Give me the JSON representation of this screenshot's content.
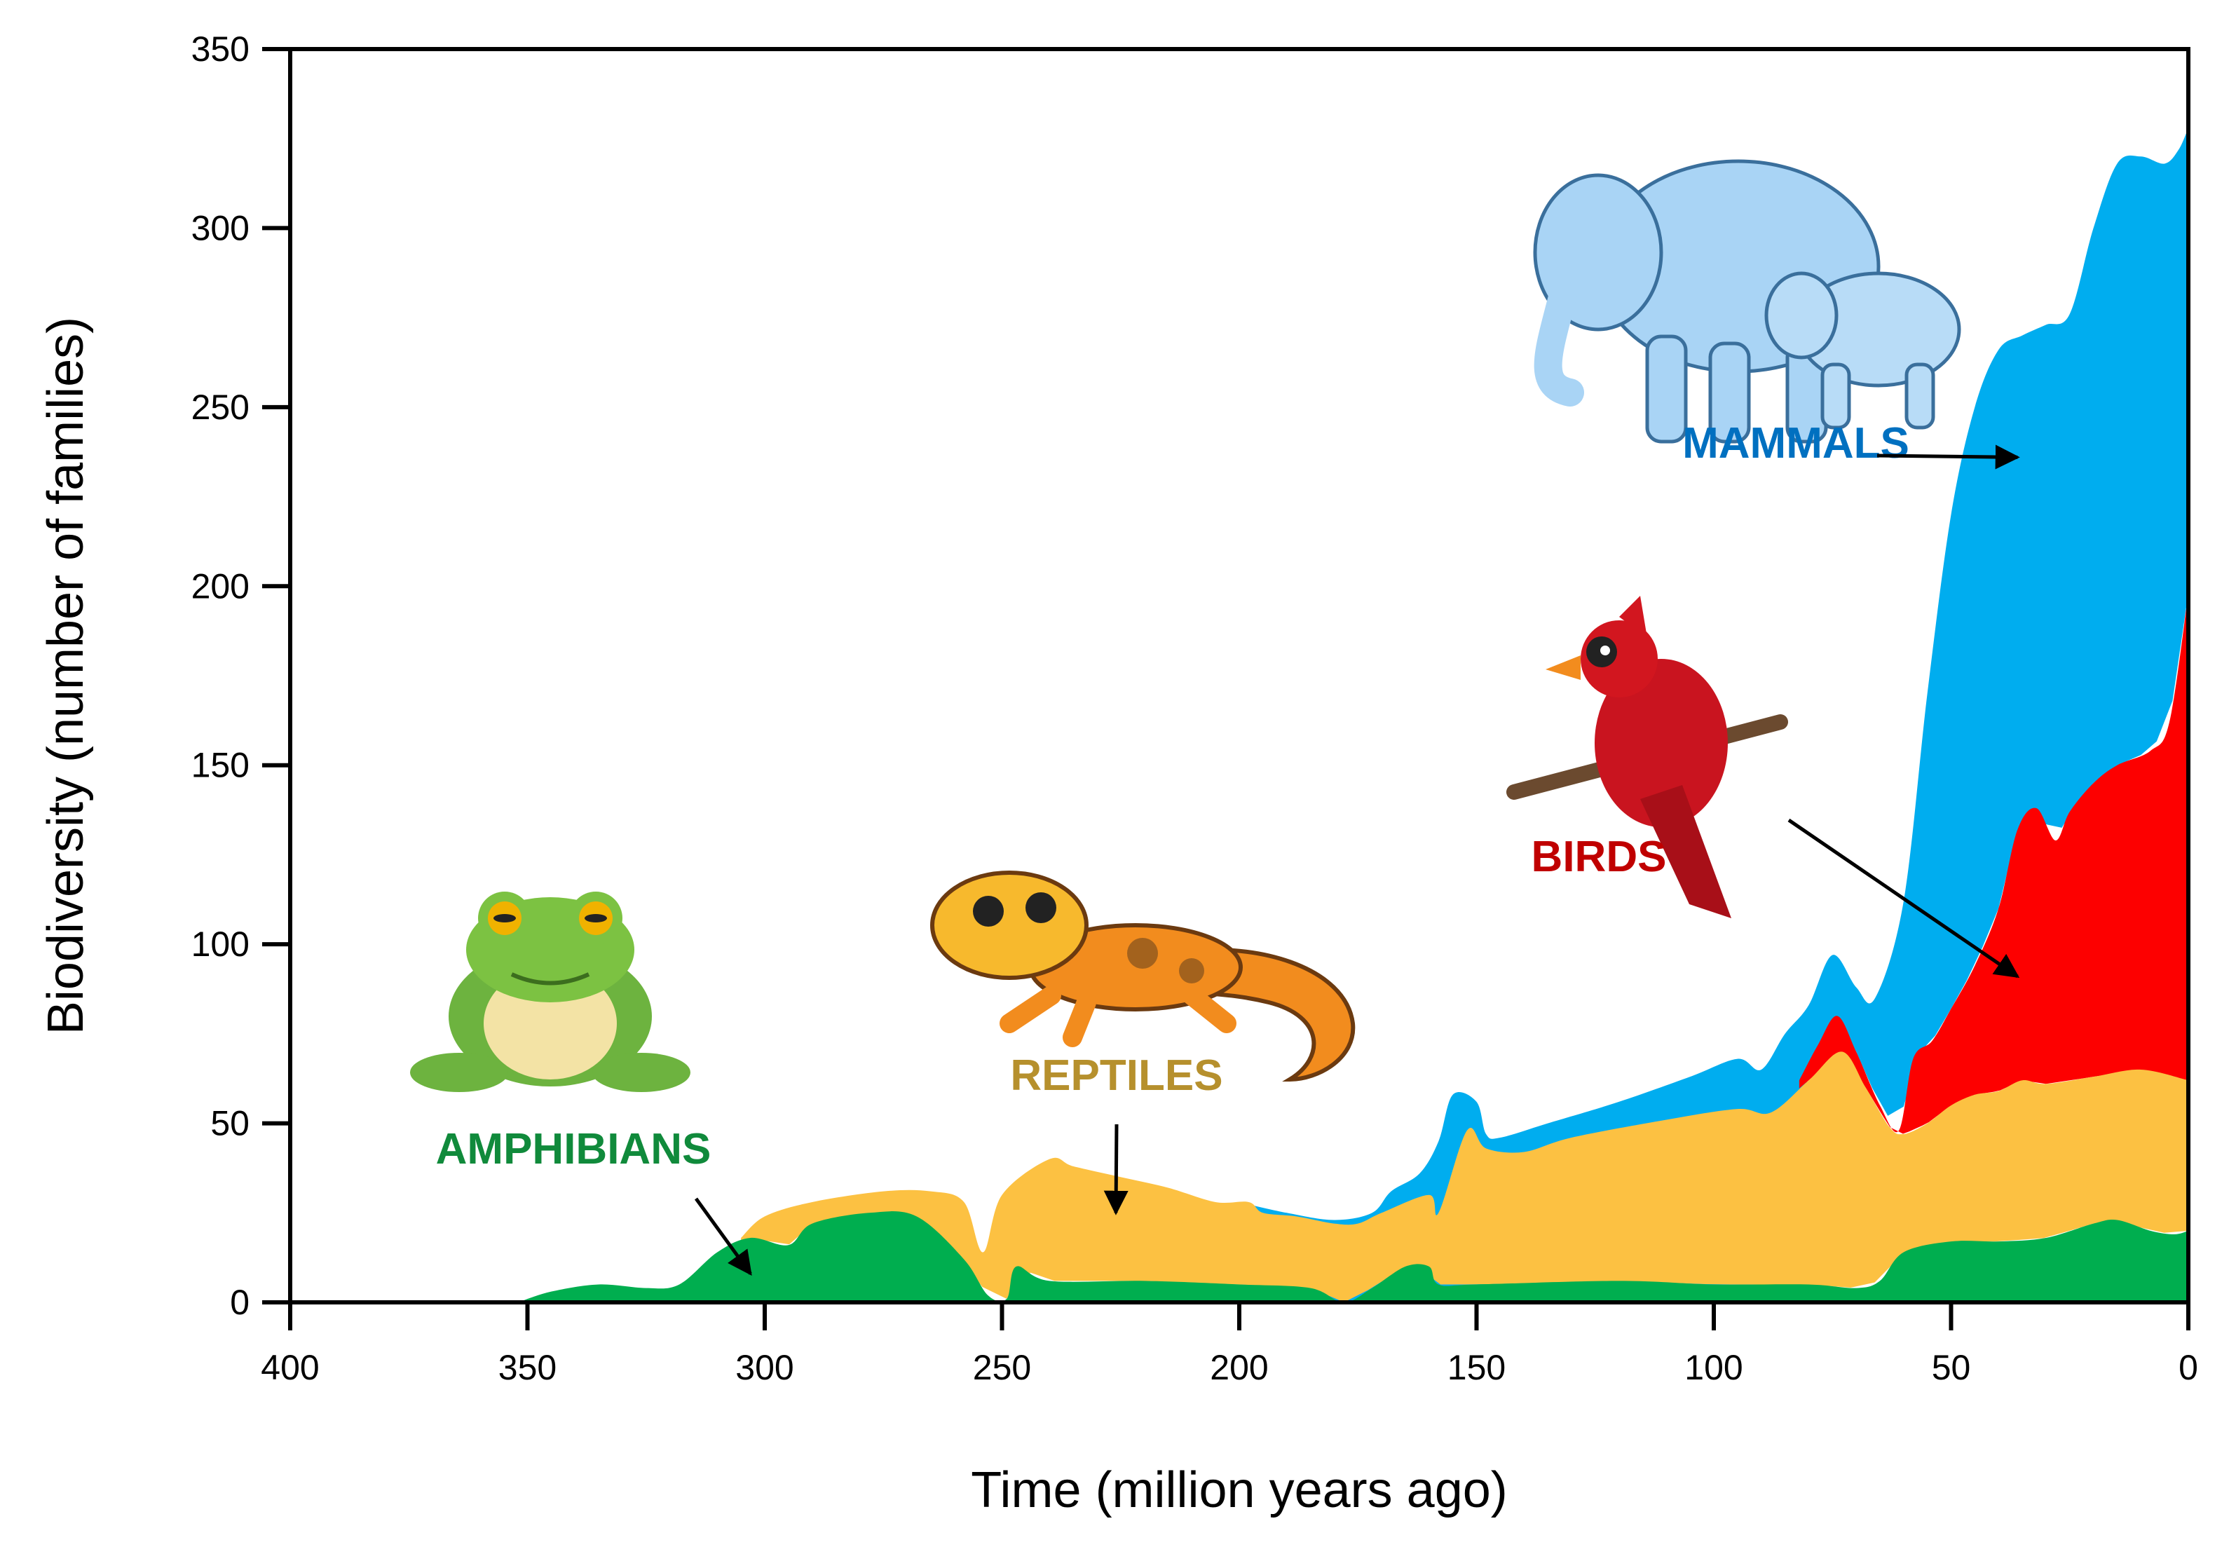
{
  "chart_data": {
    "type": "area",
    "stacked": true,
    "title": "",
    "xlabel": "Time (million years ago)",
    "ylabel": "Biodiversity (number of families)",
    "xlim": [
      400,
      0
    ],
    "ylim": [
      0,
      350
    ],
    "x_reversed": true,
    "grid": false,
    "legend": "none",
    "xticks": [
      "400",
      "350",
      "300",
      "250",
      "200",
      "150",
      "100",
      "50",
      "0"
    ],
    "yticks": [
      "0",
      "50",
      "100",
      "150",
      "200",
      "250",
      "300",
      "350"
    ],
    "series": [
      {
        "name": "AMPHIBIANS",
        "color": "#00ae4f",
        "icon": "frog-icon",
        "label_color": "#108a3b",
        "points": [
          [
            352,
            0
          ],
          [
            345,
            3
          ],
          [
            335,
            5
          ],
          [
            325,
            4
          ],
          [
            318,
            5
          ],
          [
            310,
            14
          ],
          [
            303,
            18
          ],
          [
            295,
            16
          ],
          [
            290,
            22
          ],
          [
            278,
            25
          ],
          [
            268,
            24
          ],
          [
            258,
            12
          ],
          [
            253,
            2
          ],
          [
            249,
            1
          ],
          [
            247,
            10
          ],
          [
            240,
            6
          ],
          [
            220,
            6
          ],
          [
            200,
            5
          ],
          [
            185,
            4
          ],
          [
            178,
            0
          ],
          [
            172,
            4
          ],
          [
            165,
            10
          ],
          [
            160,
            10
          ],
          [
            158,
            5
          ],
          [
            150,
            5
          ],
          [
            120,
            6
          ],
          [
            100,
            5
          ],
          [
            80,
            5
          ],
          [
            70,
            4
          ],
          [
            65,
            6
          ],
          [
            60,
            14
          ],
          [
            50,
            17
          ],
          [
            40,
            17
          ],
          [
            30,
            18
          ],
          [
            20,
            22
          ],
          [
            15,
            23
          ],
          [
            8,
            20
          ],
          [
            3,
            19
          ],
          [
            0,
            20
          ]
        ]
      },
      {
        "name": "REPTILES",
        "color": "#fcc142",
        "icon": "salamander-icon",
        "label_color": "#b6902d",
        "points": [
          [
            305,
            18
          ],
          [
            300,
            24
          ],
          [
            290,
            28
          ],
          [
            275,
            31
          ],
          [
            265,
            31
          ],
          [
            258,
            28
          ],
          [
            254,
            14
          ],
          [
            250,
            30
          ],
          [
            240,
            40
          ],
          [
            235,
            38
          ],
          [
            225,
            35
          ],
          [
            215,
            32
          ],
          [
            205,
            28
          ],
          [
            198,
            28
          ],
          [
            195,
            25
          ],
          [
            188,
            24
          ],
          [
            180,
            22
          ],
          [
            175,
            22
          ],
          [
            170,
            25
          ],
          [
            160,
            30
          ],
          [
            158,
            25
          ],
          [
            152,
            48
          ],
          [
            148,
            43
          ],
          [
            140,
            42
          ],
          [
            130,
            46
          ],
          [
            110,
            51
          ],
          [
            95,
            54
          ],
          [
            88,
            53
          ],
          [
            80,
            62
          ],
          [
            73,
            70
          ],
          [
            68,
            60
          ],
          [
            63,
            49
          ],
          [
            60,
            47
          ],
          [
            55,
            50
          ],
          [
            50,
            55
          ],
          [
            45,
            58
          ],
          [
            40,
            59
          ],
          [
            35,
            62
          ],
          [
            30,
            61
          ],
          [
            20,
            63
          ],
          [
            10,
            65
          ],
          [
            0,
            62
          ]
        ]
      },
      {
        "name": "BIRDS",
        "color": "#fd0000",
        "icon": "cardinal-icon",
        "label_color": "#c00000",
        "points": [
          [
            82,
            62
          ],
          [
            78,
            72
          ],
          [
            74,
            80
          ],
          [
            70,
            70
          ],
          [
            65,
            55
          ],
          [
            61,
            48
          ],
          [
            58,
            68
          ],
          [
            54,
            73
          ],
          [
            50,
            82
          ],
          [
            45,
            94
          ],
          [
            40,
            110
          ],
          [
            36,
            132
          ],
          [
            32,
            138
          ],
          [
            28,
            129
          ],
          [
            25,
            137
          ],
          [
            20,
            145
          ],
          [
            15,
            150
          ],
          [
            8,
            154
          ],
          [
            4,
            162
          ],
          [
            0,
            198
          ]
        ]
      },
      {
        "name": "MAMMALS",
        "color": "#00adef",
        "icon": "elephant-icon",
        "label_color": "#0070c0",
        "points": [
          [
            200,
            28
          ],
          [
            190,
            25
          ],
          [
            180,
            23
          ],
          [
            172,
            25
          ],
          [
            168,
            31
          ],
          [
            162,
            36
          ],
          [
            158,
            45
          ],
          [
            155,
            58
          ],
          [
            150,
            56
          ],
          [
            148,
            47
          ],
          [
            145,
            46
          ],
          [
            135,
            50
          ],
          [
            120,
            56
          ],
          [
            105,
            63
          ],
          [
            95,
            68
          ],
          [
            90,
            65
          ],
          [
            85,
            75
          ],
          [
            80,
            83
          ],
          [
            75,
            97
          ],
          [
            70,
            88
          ],
          [
            66,
            85
          ],
          [
            60,
            112
          ],
          [
            55,
            170
          ],
          [
            50,
            220
          ],
          [
            45,
            250
          ],
          [
            40,
            266
          ],
          [
            35,
            270
          ],
          [
            30,
            273
          ],
          [
            25,
            276
          ],
          [
            20,
            300
          ],
          [
            15,
            318
          ],
          [
            10,
            320
          ],
          [
            5,
            318
          ],
          [
            2,
            322
          ],
          [
            0,
            328
          ]
        ]
      }
    ],
    "annotations": [
      {
        "text": "AMPHIBIANS",
        "series": 0,
        "arrow_to": [
          303,
          8
        ]
      },
      {
        "text": "REPTILES",
        "series": 1,
        "arrow_to": [
          226,
          25
        ]
      },
      {
        "text": "BIRDS",
        "series": 2,
        "arrow_to": [
          36,
          91
        ]
      },
      {
        "text": "MAMMALS",
        "series": 3,
        "arrow_to": [
          36,
          236
        ]
      }
    ]
  }
}
